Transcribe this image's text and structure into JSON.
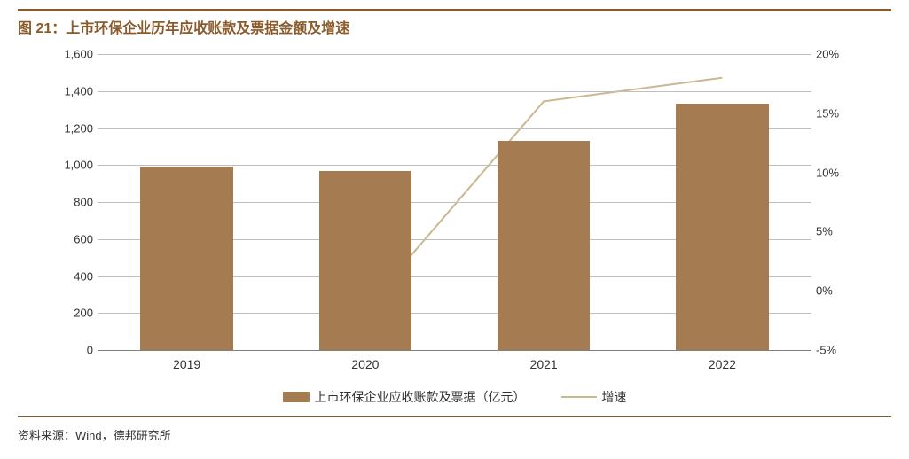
{
  "title": {
    "prefix": "图 21：",
    "text": "上市环保企业历年应收账款及票据金额及增速",
    "color": "#8b5a2b",
    "fontsize": 16,
    "border_color": "#8b5a2b"
  },
  "chart": {
    "type": "bar-line-combo",
    "categories": [
      "2019",
      "2020",
      "2021",
      "2022"
    ],
    "bar_series": {
      "label": "上市环保企业应收账款及票据（亿元）",
      "values": [
        990,
        970,
        1130,
        1330
      ],
      "color": "#a57c52",
      "bar_width_pct": 13
    },
    "line_series": {
      "label": "增速",
      "values": [
        null,
        -1.5,
        16,
        18
      ],
      "color": "#c9b890",
      "line_width": 2
    },
    "left_axis": {
      "min": 0,
      "max": 1600,
      "ticks": [
        0,
        200,
        400,
        600,
        800,
        1000,
        1200,
        1400,
        1600
      ],
      "fontsize": 13,
      "text_color": "#333333"
    },
    "right_axis": {
      "min": -5,
      "max": 20,
      "ticks": [
        -5,
        0,
        5,
        10,
        15,
        20
      ],
      "suffix": "%",
      "fontsize": 13,
      "text_color": "#333333"
    },
    "x_axis": {
      "fontsize": 14,
      "text_color": "#333333"
    },
    "grid": {
      "color": "#bfbfbf",
      "axis_color": "#808080"
    },
    "background_color": "#ffffff"
  },
  "legend": {
    "fontsize": 14,
    "text_color": "#333333"
  },
  "source": {
    "text": "资料来源：Wind，德邦研究所",
    "fontsize": 13,
    "text_color": "#333333",
    "border_color": "#8b5a2b"
  }
}
